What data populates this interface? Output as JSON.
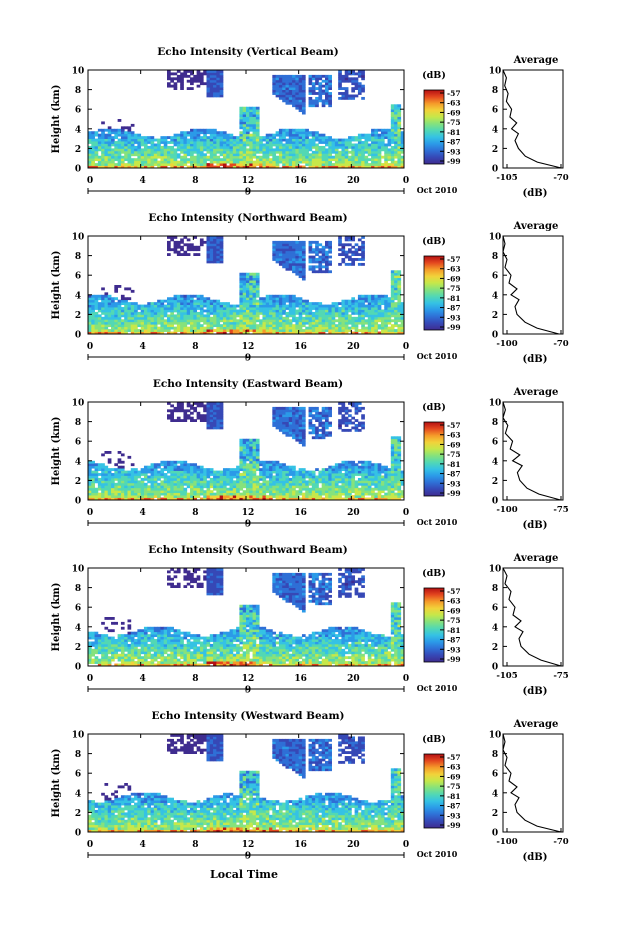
{
  "figure": {
    "xlabel_bottom": "Local Time",
    "date_label": "Oct 2010"
  },
  "colors": {
    "colormap": [
      "#3f2c8f",
      "#3648b6",
      "#2f6fd6",
      "#2b9ae8",
      "#35c2e4",
      "#52d8b4",
      "#86e27c",
      "#c6e84a",
      "#f2d23a",
      "#f59a2a",
      "#e4471f",
      "#b40f12"
    ],
    "line": "#000000",
    "background": "#ffffff"
  },
  "chart_data": [
    {
      "type": "heatmap",
      "title": "Echo Intensity (Vertical Beam)",
      "ylabel": "Height (km)",
      "xlim": [
        0,
        24
      ],
      "ylim": [
        0,
        10
      ],
      "x_ticks": [
        "0",
        "4",
        "8",
        "12",
        "16",
        "20",
        "0"
      ],
      "y_ticks": [
        "0",
        "2",
        "4",
        "6",
        "8",
        "10"
      ],
      "day_label": "9",
      "colorbar": {
        "label": "(dB)",
        "ticks": [
          "-57",
          "-63",
          "-69",
          "-75",
          "-81",
          "-87",
          "-93",
          "-99"
        ]
      },
      "profile": {
        "title": "Average",
        "xlabel": "(dB)",
        "xticks": [
          "-105",
          "-70"
        ],
        "xlim": [
          -105,
          -70
        ],
        "ylim": [
          0,
          10
        ],
        "yticks": [
          "0",
          "2",
          "4",
          "6",
          "8",
          "10"
        ],
        "points": [
          [
            -71,
            0
          ],
          [
            -85,
            0.6
          ],
          [
            -92,
            1.2
          ],
          [
            -96,
            2
          ],
          [
            -98,
            2.8
          ],
          [
            -96,
            3.5
          ],
          [
            -100,
            4
          ],
          [
            -97,
            4.6
          ],
          [
            -101,
            5.2
          ],
          [
            -100,
            6
          ],
          [
            -103,
            6.8
          ],
          [
            -102,
            7.6
          ],
          [
            -104,
            8.4
          ],
          [
            -103,
            9.2
          ],
          [
            -105,
            10
          ]
        ]
      }
    },
    {
      "type": "heatmap",
      "title": "Echo Intensity (Northward Beam)",
      "ylabel": "Height (km)",
      "xlim": [
        0,
        24
      ],
      "ylim": [
        0,
        10
      ],
      "x_ticks": [
        "0",
        "4",
        "8",
        "12",
        "16",
        "20",
        "0"
      ],
      "y_ticks": [
        "0",
        "2",
        "4",
        "6",
        "8",
        "10"
      ],
      "day_label": "9",
      "colorbar": {
        "label": "(dB)",
        "ticks": [
          "-57",
          "-63",
          "-69",
          "-75",
          "-81",
          "-87",
          "-93",
          "-99"
        ]
      },
      "profile": {
        "title": "Average",
        "xlabel": "(dB)",
        "xticks": [
          "-100",
          "-70"
        ],
        "xlim": [
          -100,
          -70
        ],
        "ylim": [
          0,
          10
        ],
        "yticks": [
          "0",
          "2",
          "4",
          "6",
          "8",
          "10"
        ],
        "points": [
          [
            -72,
            0
          ],
          [
            -83,
            0.6
          ],
          [
            -89,
            1.2
          ],
          [
            -93,
            2
          ],
          [
            -94,
            2.8
          ],
          [
            -92,
            3.5
          ],
          [
            -96,
            4
          ],
          [
            -93,
            4.6
          ],
          [
            -97,
            5.2
          ],
          [
            -96,
            6
          ],
          [
            -99,
            6.8
          ],
          [
            -98,
            7.6
          ],
          [
            -100,
            8.4
          ],
          [
            -99,
            9.2
          ],
          [
            -100,
            10
          ]
        ]
      }
    },
    {
      "type": "heatmap",
      "title": "Echo Intensity (Eastward Beam)",
      "ylabel": "Height (km)",
      "xlim": [
        0,
        24
      ],
      "ylim": [
        0,
        10
      ],
      "x_ticks": [
        "0",
        "4",
        "8",
        "12",
        "16",
        "20",
        "0"
      ],
      "y_ticks": [
        "0",
        "2",
        "4",
        "6",
        "8",
        "10"
      ],
      "day_label": "9",
      "colorbar": {
        "label": "(dB)",
        "ticks": [
          "-57",
          "-63",
          "-69",
          "-75",
          "-81",
          "-87",
          "-93",
          "-99"
        ]
      },
      "profile": {
        "title": "Average",
        "xlabel": "(dB)",
        "xticks": [
          "-100",
          "-75"
        ],
        "xlim": [
          -100,
          -75
        ],
        "ylim": [
          0,
          10
        ],
        "yticks": [
          "0",
          "2",
          "4",
          "6",
          "8",
          "10"
        ],
        "points": [
          [
            -76,
            0
          ],
          [
            -85,
            0.6
          ],
          [
            -90,
            1.2
          ],
          [
            -93,
            2
          ],
          [
            -94,
            2.8
          ],
          [
            -92,
            3.5
          ],
          [
            -96,
            4
          ],
          [
            -93,
            4.6
          ],
          [
            -97,
            5.2
          ],
          [
            -96,
            6
          ],
          [
            -99,
            6.8
          ],
          [
            -98,
            7.6
          ],
          [
            -100,
            8.4
          ],
          [
            -99,
            9.2
          ],
          [
            -100,
            10
          ]
        ]
      }
    },
    {
      "type": "heatmap",
      "title": "Echo Intensity (Southward Beam)",
      "ylabel": "Height (km)",
      "xlim": [
        0,
        24
      ],
      "ylim": [
        0,
        10
      ],
      "x_ticks": [
        "0",
        "4",
        "8",
        "12",
        "16",
        "20",
        "0"
      ],
      "y_ticks": [
        "0",
        "2",
        "4",
        "6",
        "8",
        "10"
      ],
      "day_label": "9",
      "colorbar": {
        "label": "(dB)",
        "ticks": [
          "-57",
          "-63",
          "-69",
          "-75",
          "-81",
          "-87",
          "-93",
          "-99"
        ]
      },
      "profile": {
        "title": "Average",
        "xlabel": "(dB)",
        "xticks": [
          "-105",
          "-75"
        ],
        "xlim": [
          -105,
          -75
        ],
        "ylim": [
          0,
          10
        ],
        "yticks": [
          "0",
          "2",
          "4",
          "6",
          "8",
          "10"
        ],
        "points": [
          [
            -76,
            0
          ],
          [
            -86,
            0.6
          ],
          [
            -92,
            1.2
          ],
          [
            -96,
            2
          ],
          [
            -97,
            2.8
          ],
          [
            -95,
            3.5
          ],
          [
            -99,
            4
          ],
          [
            -96,
            4.6
          ],
          [
            -100,
            5.2
          ],
          [
            -99,
            6
          ],
          [
            -102,
            6.8
          ],
          [
            -101,
            7.6
          ],
          [
            -104,
            8.4
          ],
          [
            -103,
            9.2
          ],
          [
            -105,
            10
          ]
        ]
      }
    },
    {
      "type": "heatmap",
      "title": "Echo Intensity (Westward Beam)",
      "ylabel": "Height (km)",
      "xlim": [
        0,
        24
      ],
      "ylim": [
        0,
        10
      ],
      "x_ticks": [
        "0",
        "4",
        "8",
        "12",
        "16",
        "20",
        "0"
      ],
      "y_ticks": [
        "0",
        "2",
        "4",
        "6",
        "8",
        "10"
      ],
      "day_label": "9",
      "colorbar": {
        "label": "(dB)",
        "ticks": [
          "-57",
          "-63",
          "-69",
          "-75",
          "-81",
          "-87",
          "-93",
          "-99"
        ]
      },
      "profile": {
        "title": "Average",
        "xlabel": "(dB)",
        "xticks": [
          "-100",
          "-70"
        ],
        "xlim": [
          -100,
          -70
        ],
        "ylim": [
          0,
          10
        ],
        "yticks": [
          "0",
          "2",
          "4",
          "6",
          "8",
          "10"
        ],
        "points": [
          [
            -71,
            0
          ],
          [
            -83,
            0.6
          ],
          [
            -89,
            1.2
          ],
          [
            -93,
            2
          ],
          [
            -94,
            2.8
          ],
          [
            -92,
            3.5
          ],
          [
            -96,
            4
          ],
          [
            -93,
            4.6
          ],
          [
            -97,
            5.2
          ],
          [
            -96,
            6
          ],
          [
            -99,
            6.8
          ],
          [
            -98,
            7.6
          ],
          [
            -100,
            8.4
          ],
          [
            -99,
            9.2
          ],
          [
            -100,
            10
          ]
        ]
      }
    }
  ]
}
